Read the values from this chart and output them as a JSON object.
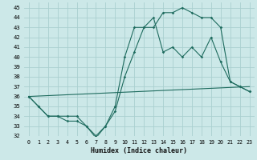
{
  "xlabel": "Humidex (Indice chaleur)",
  "ylabel": "",
  "bg_color": "#cce8e8",
  "grid_color": "#aacfcf",
  "line_color": "#1e6b5e",
  "xlim": [
    -0.5,
    23.5
  ],
  "ylim": [
    32,
    45.5
  ],
  "yticks": [
    32,
    33,
    34,
    35,
    36,
    37,
    38,
    39,
    40,
    41,
    42,
    43,
    44,
    45
  ],
  "xticks": [
    0,
    1,
    2,
    3,
    4,
    5,
    6,
    7,
    8,
    9,
    10,
    11,
    12,
    13,
    14,
    15,
    16,
    17,
    18,
    19,
    20,
    21,
    22,
    23
  ],
  "series1": {
    "x": [
      0,
      1,
      2,
      3,
      4,
      5,
      6,
      7,
      8,
      9,
      10,
      11,
      12,
      13,
      14,
      15,
      16,
      17,
      18,
      19,
      20,
      21,
      22,
      23
    ],
    "y": [
      36,
      35,
      34,
      34,
      34,
      34,
      33,
      32,
      33,
      35,
      40,
      43,
      43,
      44,
      40.5,
      41,
      40,
      41,
      40,
      42,
      39.5,
      37.5,
      37,
      36.5
    ]
  },
  "series2": {
    "x": [
      0,
      1,
      2,
      3,
      4,
      5,
      6,
      7,
      8,
      9,
      10,
      11,
      12,
      13,
      14,
      15,
      16,
      17,
      18,
      19,
      20,
      21,
      22,
      23
    ],
    "y": [
      36,
      35,
      34,
      34,
      33.5,
      33.5,
      33,
      31.8,
      33,
      34.5,
      38,
      40.5,
      43,
      43,
      44.5,
      44.5,
      45,
      44.5,
      44,
      44,
      43,
      37.5,
      37,
      36.5
    ]
  },
  "series3": {
    "x": [
      0,
      23
    ],
    "y": [
      36,
      37
    ]
  }
}
